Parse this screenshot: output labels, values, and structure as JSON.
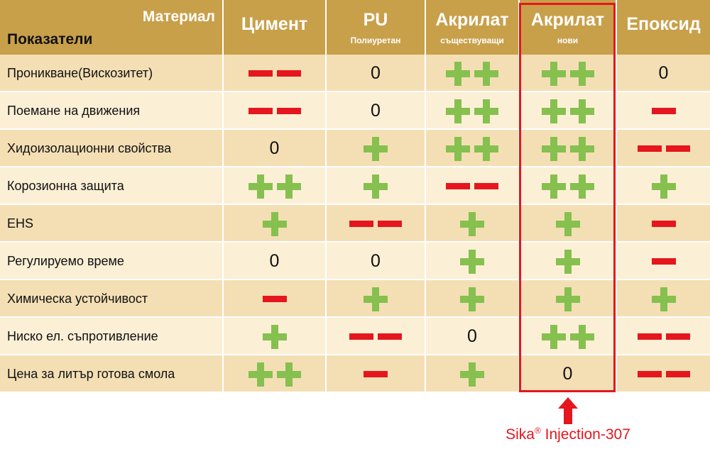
{
  "header": {
    "corner_top": "Материал",
    "corner_bottom": "Показатели",
    "columns": [
      {
        "title": "Цимент",
        "subtitle": ""
      },
      {
        "title": "PU",
        "subtitle": "Полиуретан"
      },
      {
        "title": "Акрилат",
        "subtitle": "съществуващи"
      },
      {
        "title": "Акрилат",
        "subtitle": "нови"
      },
      {
        "title": "Епоксид",
        "subtitle": ""
      }
    ]
  },
  "rows": [
    {
      "label": "Проникване(Вискозитет)",
      "values": [
        "--",
        "0",
        "++",
        "++",
        "0"
      ]
    },
    {
      "label": "Поемане на движения",
      "values": [
        "--",
        "0",
        "++",
        "++",
        "-"
      ]
    },
    {
      "label": "Хидоизолационни свойства",
      "values": [
        "0",
        "+",
        "++",
        "++",
        "--"
      ]
    },
    {
      "label": "Корозионна защита",
      "values": [
        "++",
        "+",
        "--",
        "++",
        "+"
      ]
    },
    {
      "label": "EHS",
      "values": [
        "+",
        "--",
        "+",
        "+",
        "-"
      ]
    },
    {
      "label": "Регулируемо време",
      "values": [
        "0",
        "0",
        "+",
        "+",
        "-"
      ]
    },
    {
      "label": "Химическа устойчивост",
      "values": [
        "-",
        "+",
        "+",
        "+",
        "+"
      ]
    },
    {
      "label": "Ниско ел. съпротивление",
      "values": [
        "+",
        "--",
        "0",
        "++",
        "--"
      ]
    },
    {
      "label": "Цена за литър готова смола",
      "values": [
        "++",
        "-",
        "+",
        "0",
        "--"
      ]
    }
  ],
  "colors": {
    "plus": "#86c04e",
    "minus": "#e5161d",
    "header": "#c8a04a",
    "highlight": "#e5161d"
  },
  "highlight_column": 3,
  "callout": {
    "brand": "Sika",
    "registered": "®",
    "product": " Injection-307"
  }
}
